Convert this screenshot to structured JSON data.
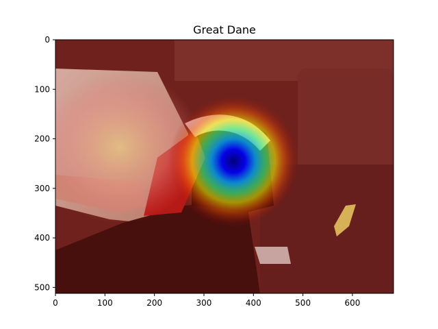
{
  "chart_data": {
    "type": "heatmap",
    "title": "Great Dane",
    "xlabel": "",
    "ylabel": "",
    "xlim": [
      0,
      683
    ],
    "ylim": [
      512,
      0
    ],
    "x_ticks": [
      0,
      100,
      200,
      300,
      400,
      500,
      600
    ],
    "y_ticks": [
      0,
      100,
      200,
      300,
      400,
      500
    ],
    "grid": false,
    "colormap": "jet",
    "hotspot_center": [
      360,
      245
    ],
    "background_image": "dog-on-couch-photo"
  }
}
